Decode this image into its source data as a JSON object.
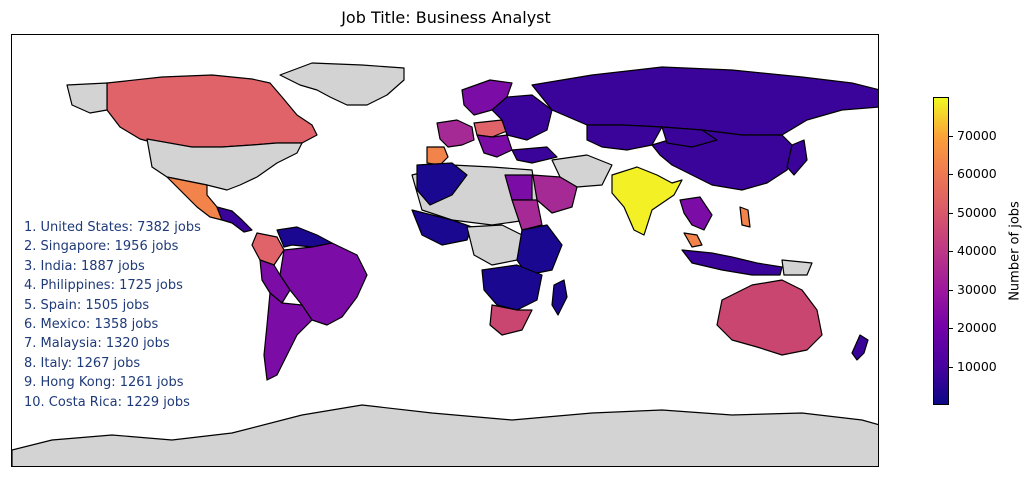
{
  "title": "Job Title: Business Analyst",
  "top_countries": [
    "1. United States: 7382 jobs",
    "2. Singapore: 1956 jobs",
    "3. India: 1887 jobs",
    "4. Philippines: 1725 jobs",
    "5. Spain: 1505 jobs",
    "6. Mexico: 1358 jobs",
    "7. Malaysia: 1320 jobs",
    "8. Italy: 1267 jobs",
    "9. Hong Kong: 1261 jobs",
    "10. Costa Rica: 1229 jobs"
  ],
  "colorbar": {
    "label": "Number of jobs",
    "min": 0,
    "max": 80000,
    "ticks": [
      "10000",
      "20000",
      "30000",
      "40000",
      "50000",
      "60000",
      "70000"
    ],
    "tick_values": [
      10000,
      20000,
      30000,
      40000,
      50000,
      60000,
      70000
    ],
    "colormap": "plasma"
  },
  "colors": {
    "no_data": "#d3d3d3",
    "very_low": "#1a0890",
    "low": "#3a049a",
    "mid_low": "#7c0ca6",
    "mid": "#a62a96",
    "mid_high": "#c94670",
    "high": "#e0636a",
    "higher": "#f2844b",
    "top": "#f3f125"
  }
}
